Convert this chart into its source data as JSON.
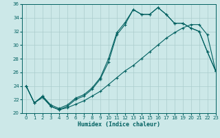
{
  "xlabel": "Humidex (Indice chaleur)",
  "bg_color": "#cce8e8",
  "grid_color": "#aacccc",
  "line_color": "#006060",
  "ylim": [
    20,
    36
  ],
  "xlim": [
    -0.5,
    23
  ],
  "yticks": [
    20,
    22,
    24,
    26,
    28,
    30,
    32,
    34,
    36
  ],
  "xticks": [
    0,
    1,
    2,
    3,
    4,
    5,
    6,
    7,
    8,
    9,
    10,
    11,
    12,
    13,
    14,
    15,
    16,
    17,
    18,
    19,
    20,
    21,
    22,
    23
  ],
  "line1_x": [
    0,
    1,
    2,
    3,
    4,
    5,
    6,
    7,
    8,
    9,
    10,
    11,
    12,
    13,
    14,
    15,
    16,
    17,
    18,
    19,
    20,
    21,
    22,
    23
  ],
  "line1_y": [
    24.0,
    21.5,
    22.5,
    21.0,
    20.5,
    21.0,
    22.0,
    22.5,
    23.5,
    25.0,
    27.5,
    31.5,
    33.0,
    35.2,
    34.5,
    34.5,
    35.5,
    34.5,
    33.2,
    33.2,
    32.5,
    32.0,
    29.0,
    26.2
  ],
  "line2_x": [
    0,
    1,
    2,
    3,
    4,
    5,
    6,
    7,
    8,
    9,
    10,
    11,
    12,
    13,
    14,
    15,
    16,
    17,
    18,
    19,
    20,
    21,
    22,
    23
  ],
  "line2_y": [
    24.0,
    21.5,
    22.5,
    21.2,
    20.7,
    21.2,
    22.2,
    22.7,
    23.7,
    25.2,
    28.0,
    31.8,
    33.3,
    35.2,
    34.5,
    34.5,
    35.5,
    34.5,
    33.2,
    33.2,
    32.5,
    32.0,
    29.0,
    26.2
  ],
  "line3_x": [
    0,
    1,
    2,
    3,
    4,
    5,
    6,
    7,
    8,
    9,
    10,
    11,
    12,
    13,
    14,
    15,
    16,
    17,
    18,
    19,
    20,
    21,
    22,
    23
  ],
  "line3_y": [
    24.0,
    21.5,
    22.3,
    21.0,
    20.5,
    20.8,
    21.3,
    21.8,
    22.5,
    23.2,
    24.2,
    25.2,
    26.2,
    27.0,
    28.0,
    29.0,
    30.0,
    31.0,
    31.8,
    32.5,
    33.0,
    33.0,
    31.5,
    26.2
  ]
}
